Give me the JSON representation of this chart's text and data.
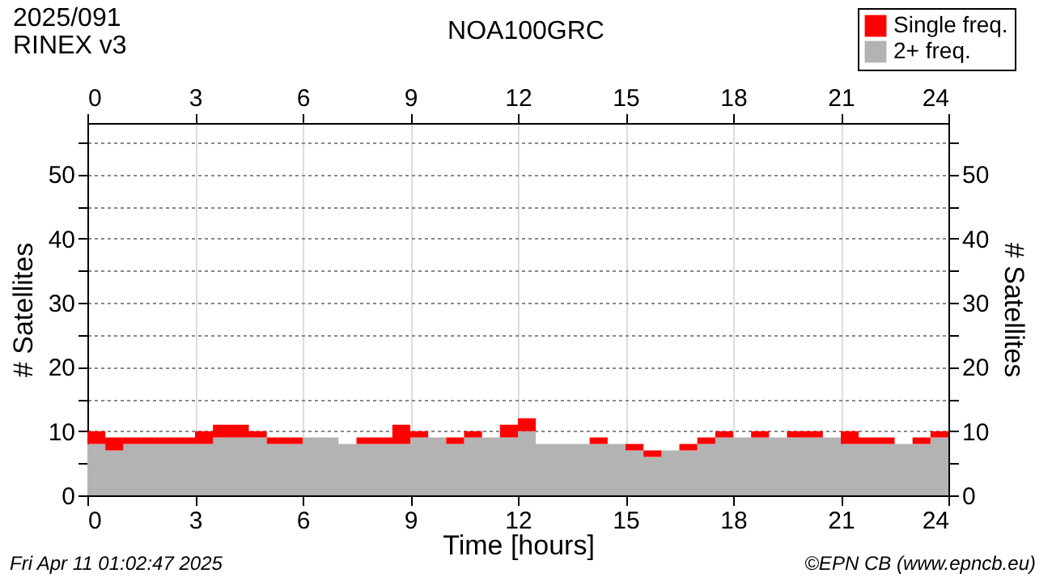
{
  "chart_data": {
    "type": "area",
    "title": "NOA100GRC",
    "xlabel": "Time [hours]",
    "ylabel": "# Satellites",
    "y2label": "# Satellites",
    "stacked": true,
    "legend": "top right",
    "grid": true,
    "x": [
      0,
      0.5,
      1,
      1.5,
      2,
      2.5,
      3,
      3.5,
      4,
      4.5,
      5,
      5.5,
      6,
      6.5,
      7,
      7.5,
      8,
      8.5,
      9,
      9.5,
      10,
      10.5,
      11,
      11.5,
      12,
      12.5,
      13,
      13.5,
      14,
      14.5,
      15,
      15.5,
      16,
      16.5,
      17,
      17.5,
      18,
      18.5,
      19,
      19.5,
      20,
      20.5,
      21,
      21.5,
      22,
      22.5,
      23,
      23.5,
      24
    ],
    "series": [
      {
        "name": "2+ freq.",
        "color": "#b3b3b3",
        "values": [
          8,
          7,
          8,
          8,
          8,
          8,
          8,
          9,
          9,
          9,
          8,
          8,
          9,
          9,
          8,
          8,
          8,
          8,
          9,
          9,
          8,
          9,
          9,
          9,
          10,
          8,
          8,
          8,
          8,
          8,
          7,
          6,
          7,
          7,
          8,
          9,
          9,
          9,
          9,
          9,
          9,
          9,
          8,
          8,
          8,
          8,
          8,
          9,
          9
        ]
      },
      {
        "name": "Single freq.",
        "color": "#ff0000",
        "values": [
          2,
          2,
          1,
          1,
          1,
          1,
          2,
          2,
          2,
          1,
          1,
          1,
          0,
          0,
          0,
          1,
          1,
          3,
          1,
          0,
          1,
          1,
          0,
          2,
          2,
          0,
          0,
          0,
          1,
          0,
          1,
          1,
          0,
          1,
          1,
          1,
          0,
          1,
          0,
          1,
          1,
          0,
          2,
          1,
          1,
          0,
          1,
          1,
          1
        ]
      }
    ],
    "xlim": [
      0,
      24
    ],
    "xticks": [
      0,
      3,
      6,
      9,
      12,
      15,
      18,
      21,
      24
    ],
    "x2lim": [
      0,
      24
    ],
    "x2ticks": [
      0,
      3,
      6,
      9,
      12,
      15,
      18,
      21,
      24
    ],
    "ylim": [
      0,
      58
    ],
    "yticks": [
      0,
      {
        "value": 5,
        "label": null
      },
      10,
      {
        "value": 15,
        "label": null
      },
      20,
      {
        "value": 25,
        "label": null
      },
      30,
      {
        "value": 35,
        "label": null
      },
      40,
      {
        "value": 45,
        "label": null
      },
      50,
      {
        "value": 55,
        "label": null
      }
    ],
    "y2lim": [
      0,
      58
    ],
    "y2ticks": [
      0,
      {
        "value": 5,
        "label": null
      },
      10,
      {
        "value": 15,
        "label": null
      },
      20,
      {
        "value": 25,
        "label": null
      },
      30,
      {
        "value": 35,
        "label": null
      },
      40,
      {
        "value": 45,
        "label": null
      },
      50,
      {
        "value": 55,
        "label": null
      }
    ],
    "annotations": [
      "2025/091",
      "RINEX v3",
      "Fri Apr 11 01:02:47 2025",
      "©EPN CB (www.epncb.eu)"
    ]
  }
}
